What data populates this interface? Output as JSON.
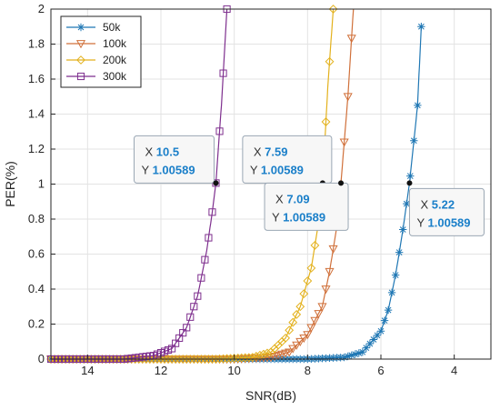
{
  "chart_data": {
    "type": "line",
    "xlabel": "SNR(dB)",
    "ylabel": "PER(%)",
    "x_reversed": true,
    "xlim": [
      15,
      3
    ],
    "ylim": [
      0,
      2
    ],
    "x_ticks": [
      "14",
      "12",
      "10",
      "8",
      "6",
      "4"
    ],
    "y_ticks": [
      "0",
      "0.2",
      "0.4",
      "0.6",
      "0.8",
      "1",
      "1.2",
      "1.4",
      "1.6",
      "1.8",
      "2"
    ],
    "grid": true,
    "legend_position": "top-left",
    "series": [
      {
        "name": "50k",
        "marker": "asterisk",
        "color": "#1f77b4",
        "threshold": 5.22,
        "x": [
          15.0,
          8.0,
          7.0,
          6.5,
          6.0,
          5.8,
          5.6,
          5.4,
          5.22,
          5.0,
          4.9
        ],
        "y": [
          0.0,
          0.0,
          0.01,
          0.04,
          0.16,
          0.28,
          0.48,
          0.74,
          1.00589,
          1.45,
          1.9
        ]
      },
      {
        "name": "100k",
        "marker": "triangle-down",
        "color": "#d0703a",
        "threshold": 7.09,
        "x": [
          15.0,
          10.0,
          9.0,
          8.5,
          8.0,
          7.6,
          7.4,
          7.2,
          7.09,
          6.9,
          6.75
        ],
        "y": [
          0.0,
          0.0,
          0.01,
          0.04,
          0.14,
          0.3,
          0.5,
          0.76,
          1.00589,
          1.5,
          2.0
        ]
      },
      {
        "name": "200k",
        "marker": "diamond",
        "color": "#e3b11c",
        "threshold": 7.59,
        "x": [
          15.0,
          10.5,
          9.5,
          9.0,
          8.6,
          8.2,
          7.9,
          7.7,
          7.59,
          7.45,
          7.3
        ],
        "y": [
          0.0,
          0.0,
          0.01,
          0.04,
          0.12,
          0.3,
          0.52,
          0.78,
          1.00589,
          1.55,
          2.0
        ]
      },
      {
        "name": "300k",
        "marker": "square",
        "color": "#7e2f8e",
        "threshold": 10.5,
        "x": [
          15.0,
          13.0,
          12.2,
          11.7,
          11.3,
          11.0,
          10.75,
          10.6,
          10.5,
          10.35,
          10.2
        ],
        "y": [
          0.0,
          0.0,
          0.02,
          0.06,
          0.18,
          0.36,
          0.62,
          0.84,
          1.00589,
          1.45,
          2.0
        ]
      }
    ],
    "datatips": [
      {
        "x_label": "X",
        "x_value": "10.5",
        "y_label": "Y",
        "y_value": "1.00589"
      },
      {
        "x_label": "X",
        "x_value": "7.59",
        "y_label": "Y",
        "y_value": "1.00589"
      },
      {
        "x_label": "X",
        "x_value": "7.09",
        "y_label": "Y",
        "y_value": "1.00589"
      },
      {
        "x_label": "X",
        "x_value": "5.22",
        "y_label": "Y",
        "y_value": "1.00589"
      }
    ],
    "colors": {
      "tip_value": "#1a7fc9",
      "grid": "#e3e3e3",
      "axis": "#262626"
    }
  }
}
